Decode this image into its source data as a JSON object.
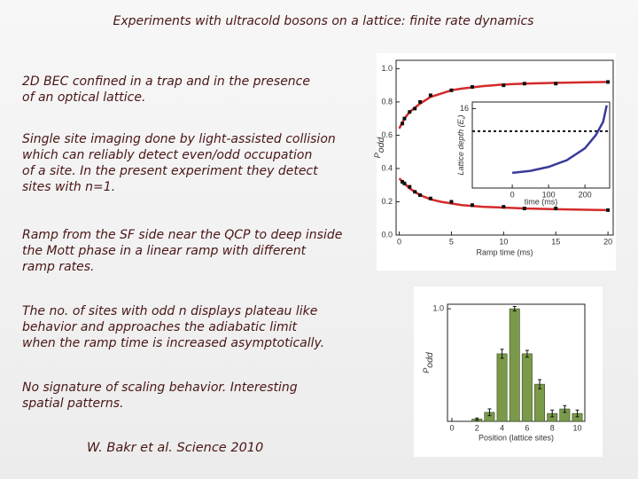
{
  "title": "Experiments with ultracold bosons on a lattice: finite rate dynamics",
  "paragraphs": [
    [
      "2D BEC confined in a trap and in the presence",
      "of an optical lattice."
    ],
    [
      "Single site imaging done by light-assisted collision",
      "which can reliably detect even/odd occupation",
      "of a site.  In the present experiment they detect",
      "sites with n=1."
    ],
    [
      "Ramp from the SF side near the QCP to deep inside",
      "the Mott phase in a linear ramp with different",
      "ramp rates."
    ],
    [
      "The no. of sites with odd n displays plateau like",
      "behavior and approaches the adiabatic limit",
      "when the ramp time is increased asymptotically."
    ],
    [
      "No signature of scaling behavior. Interesting",
      "spatial patterns."
    ]
  ],
  "citation": "W. Bakr et al. Science 2010",
  "figures": [
    {
      "type": "scatter",
      "xlabel": "Ramp time (ms)",
      "ylabel": "P",
      "ylabel_sub": "odd",
      "xlim": [
        -0.3,
        20.5
      ],
      "ylim": [
        0,
        1.05
      ],
      "xticks": [
        0,
        5,
        10,
        15,
        20
      ],
      "yticks": [
        {
          "value": 0,
          "label": "0.0"
        },
        0.2,
        0.4,
        0.6,
        0.8,
        {
          "value": 1,
          "label": "1.0"
        }
      ],
      "series": [
        {
          "style": "line",
          "color": "#d42a2a",
          "x": [
            0,
            0.5,
            1,
            2,
            3,
            4,
            5,
            6,
            8,
            10,
            12,
            15,
            18,
            20
          ],
          "values": [
            0.64,
            0.7,
            0.74,
            0.79,
            0.83,
            0.85,
            0.87,
            0.88,
            0.895,
            0.905,
            0.91,
            0.915,
            0.918,
            0.92
          ]
        },
        {
          "style": "line",
          "color": "#d42a2a",
          "x": [
            0,
            0.5,
            1,
            2,
            3,
            4,
            5,
            6,
            8,
            10,
            12,
            15,
            18,
            20
          ],
          "values": [
            0.34,
            0.31,
            0.28,
            0.24,
            0.215,
            0.2,
            0.19,
            0.18,
            0.17,
            0.165,
            0.16,
            0.155,
            0.152,
            0.15
          ]
        },
        {
          "style": "points",
          "color": "#111111",
          "x": [
            0.3,
            0.5,
            1,
            1.5,
            2,
            3,
            5,
            7,
            10,
            12,
            15,
            20
          ],
          "values": [
            0.67,
            0.7,
            0.74,
            0.76,
            0.8,
            0.84,
            0.87,
            0.89,
            0.9,
            0.91,
            0.91,
            0.92
          ]
        },
        {
          "style": "points",
          "color": "#111111",
          "x": [
            0.3,
            0.5,
            1,
            1.5,
            2,
            3,
            5,
            7,
            10,
            12,
            15,
            20
          ],
          "values": [
            0.32,
            0.31,
            0.29,
            0.26,
            0.24,
            0.22,
            0.2,
            0.18,
            0.17,
            0.16,
            0.16,
            0.15
          ]
        }
      ],
      "inset": {
        "xlabel": "time (ms)",
        "ylabel": "Lattice depth (E",
        "ylabel_sub": "r",
        "ylabel_end": ")",
        "xlim": [
          -110,
          268
        ],
        "ylim": [
          4,
          17
        ],
        "xticks": [
          0,
          100,
          200
        ],
        "yticks": [
          16
        ],
        "dashed_y": 12.6,
        "color": "#3a3a9a",
        "x": [
          0,
          50,
          100,
          150,
          200,
          230,
          250,
          260
        ],
        "values": [
          6.3,
          6.6,
          7.2,
          8.2,
          10,
          12,
          14,
          16.5
        ]
      }
    },
    {
      "type": "bar",
      "xlabel": "Position (lattice sites)",
      "ylabel": "P",
      "ylabel_sub": "odd",
      "xlim": [
        -0.35,
        10.6
      ],
      "ylim": [
        0,
        1.04
      ],
      "xticks": [
        0,
        2,
        4,
        6,
        8,
        10
      ],
      "yticks": [
        {
          "value": 1,
          "label": "1.0"
        }
      ],
      "color": "#7a9a4a",
      "x": [
        2,
        3,
        4,
        5,
        6,
        7,
        8,
        9,
        10
      ],
      "values": [
        0.02,
        0.08,
        0.6,
        1.0,
        0.6,
        0.33,
        0.07,
        0.11,
        0.07
      ],
      "errors": [
        0.01,
        0.03,
        0.04,
        0.02,
        0.03,
        0.04,
        0.03,
        0.03,
        0.03
      ]
    }
  ]
}
